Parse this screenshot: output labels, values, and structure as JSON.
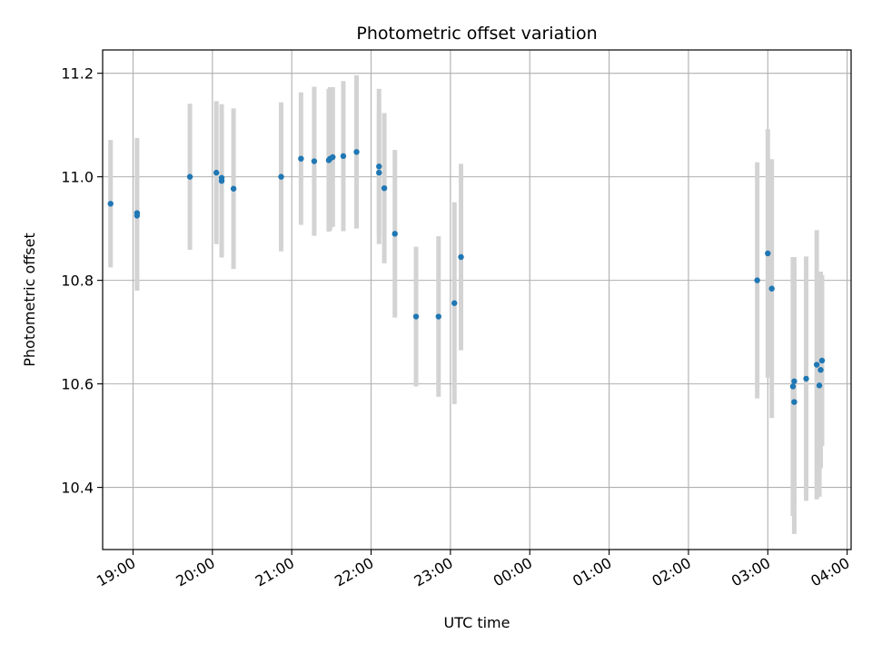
{
  "chart_data": {
    "type": "scatter",
    "title": "Photometric offset variation",
    "xlabel": "UTC time",
    "ylabel": "Photometric offset",
    "xlim": [
      "18:37",
      "04:03"
    ],
    "ylim": [
      10.28,
      11.245
    ],
    "grid": true,
    "x_ticks": [
      "19:00",
      "20:00",
      "21:00",
      "22:00",
      "23:00",
      "00:00",
      "01:00",
      "02:00",
      "03:00",
      "04:00"
    ],
    "y_ticks": [
      10.4,
      10.6,
      10.8,
      11.0,
      11.2
    ],
    "y_tick_labels": [
      "10.4",
      "10.6",
      "10.8",
      "11.0",
      "11.2"
    ],
    "series": [
      {
        "marker_color": "#1f77b4",
        "errorbar_color": "#d3d3d3",
        "points": [
          {
            "x": "18:43",
            "y": 10.948,
            "err": 0.123
          },
          {
            "x": "19:03",
            "y": 10.93,
            "err": 0.145
          },
          {
            "x": "19:03",
            "y": 10.925,
            "err": 0.145
          },
          {
            "x": "19:43",
            "y": 11.0,
            "err": 0.141
          },
          {
            "x": "20:03",
            "y": 11.008,
            "err": 0.138
          },
          {
            "x": "20:07",
            "y": 10.998,
            "err": 0.142
          },
          {
            "x": "20:07",
            "y": 10.992,
            "err": 0.148
          },
          {
            "x": "20:16",
            "y": 10.977,
            "err": 0.155
          },
          {
            "x": "20:52",
            "y": 11.0,
            "err": 0.144
          },
          {
            "x": "21:07",
            "y": 11.035,
            "err": 0.128
          },
          {
            "x": "21:17",
            "y": 11.03,
            "err": 0.144
          },
          {
            "x": "21:28",
            "y": 11.032,
            "err": 0.138
          },
          {
            "x": "21:29",
            "y": 11.035,
            "err": 0.138
          },
          {
            "x": "21:31",
            "y": 11.038,
            "err": 0.135
          },
          {
            "x": "21:39",
            "y": 11.04,
            "err": 0.145
          },
          {
            "x": "21:49",
            "y": 11.048,
            "err": 0.148
          },
          {
            "x": "22:06",
            "y": 11.02,
            "err": 0.15
          },
          {
            "x": "22:06",
            "y": 11.008,
            "err": 0.12
          },
          {
            "x": "22:10",
            "y": 10.978,
            "err": 0.145
          },
          {
            "x": "22:18",
            "y": 10.89,
            "err": 0.162
          },
          {
            "x": "22:34",
            "y": 10.73,
            "err": 0.135
          },
          {
            "x": "22:51",
            "y": 10.73,
            "err": 0.155
          },
          {
            "x": "23:03",
            "y": 10.756,
            "err": 0.195
          },
          {
            "x": "23:08",
            "y": 10.845,
            "err": 0.18
          },
          {
            "x": "02:52",
            "y": 10.8,
            "err": 0.228
          },
          {
            "x": "03:00",
            "y": 10.852,
            "err": 0.24
          },
          {
            "x": "03:03",
            "y": 10.784,
            "err": 0.25
          },
          {
            "x": "03:19",
            "y": 10.595,
            "err": 0.25
          },
          {
            "x": "03:20",
            "y": 10.605,
            "err": 0.24
          },
          {
            "x": "03:20",
            "y": 10.565,
            "err": 0.255
          },
          {
            "x": "03:29",
            "y": 10.61,
            "err": 0.236
          },
          {
            "x": "03:37",
            "y": 10.637,
            "err": 0.26
          },
          {
            "x": "03:39",
            "y": 10.597,
            "err": 0.215
          },
          {
            "x": "03:40",
            "y": 10.627,
            "err": 0.19
          },
          {
            "x": "03:41",
            "y": 10.645,
            "err": 0.165
          }
        ]
      }
    ]
  }
}
